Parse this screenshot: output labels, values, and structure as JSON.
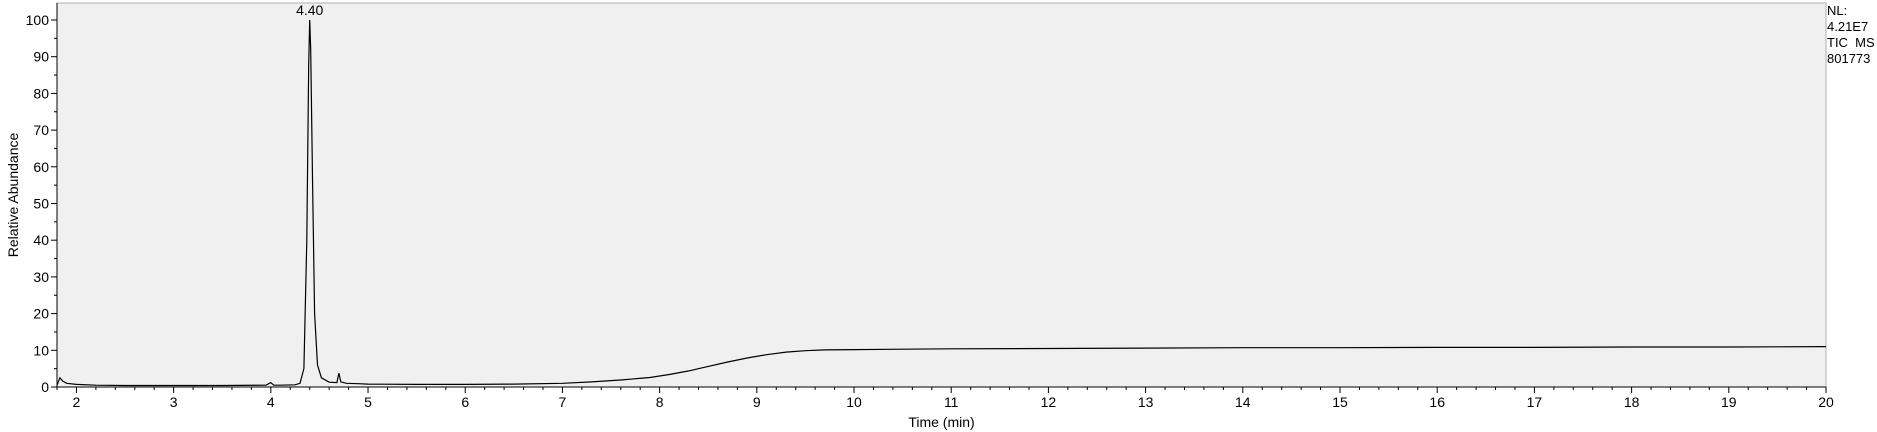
{
  "info_panel": {
    "nl_label": "NL:",
    "nl_value": "4.21E7",
    "scan_filter": "TIC  MS",
    "sample_id": "801773"
  },
  "chart_data": {
    "type": "line",
    "title": "",
    "xlabel": "Time (min)",
    "ylabel": "Relative Abundance",
    "xlim": [
      1.8,
      20
    ],
    "ylim": [
      0,
      100
    ],
    "xticks": [
      2,
      3,
      4,
      5,
      6,
      7,
      8,
      9,
      10,
      11,
      12,
      13,
      14,
      15,
      16,
      17,
      18,
      19,
      20
    ],
    "yticks": [
      0,
      10,
      20,
      30,
      40,
      50,
      60,
      70,
      80,
      90,
      100
    ],
    "grid": false,
    "background": "#f0f0f0",
    "line_color": "#000000",
    "annotations": [
      {
        "x": 4.4,
        "y": 100,
        "text": "4.40"
      }
    ],
    "series": [
      {
        "x": [
          1.8,
          1.83,
          1.86,
          1.9,
          2.0,
          2.2,
          2.5,
          3.0,
          3.5,
          3.95,
          4.0,
          4.03,
          4.1,
          4.25,
          4.3,
          4.34,
          4.37,
          4.39,
          4.4,
          4.41,
          4.43,
          4.45,
          4.48,
          4.52,
          4.6,
          4.68,
          4.7,
          4.72,
          4.78,
          4.9,
          5.0,
          5.5,
          6.0,
          6.5,
          7.0,
          7.3,
          7.6,
          7.9,
          8.1,
          8.3,
          8.5,
          8.7,
          8.9,
          9.1,
          9.3,
          9.5,
          9.7,
          10.0,
          10.5,
          11.0,
          12.0,
          13.0,
          14.0,
          15.0,
          16.0,
          17.0,
          18.0,
          19.0,
          20.0
        ],
        "y": [
          0.5,
          2.5,
          1.6,
          1.0,
          0.7,
          0.5,
          0.4,
          0.4,
          0.4,
          0.5,
          1.2,
          0.5,
          0.5,
          0.6,
          1.0,
          5.0,
          40.0,
          88.0,
          100.0,
          92.0,
          55.0,
          20.0,
          6.0,
          2.5,
          1.3,
          1.2,
          3.8,
          1.4,
          1.0,
          0.9,
          0.8,
          0.7,
          0.7,
          0.8,
          1.0,
          1.4,
          1.9,
          2.6,
          3.4,
          4.4,
          5.6,
          6.8,
          7.9,
          8.8,
          9.5,
          9.9,
          10.1,
          10.2,
          10.3,
          10.4,
          10.5,
          10.6,
          10.7,
          10.7,
          10.8,
          10.8,
          10.9,
          10.9,
          11.0
        ]
      }
    ]
  }
}
